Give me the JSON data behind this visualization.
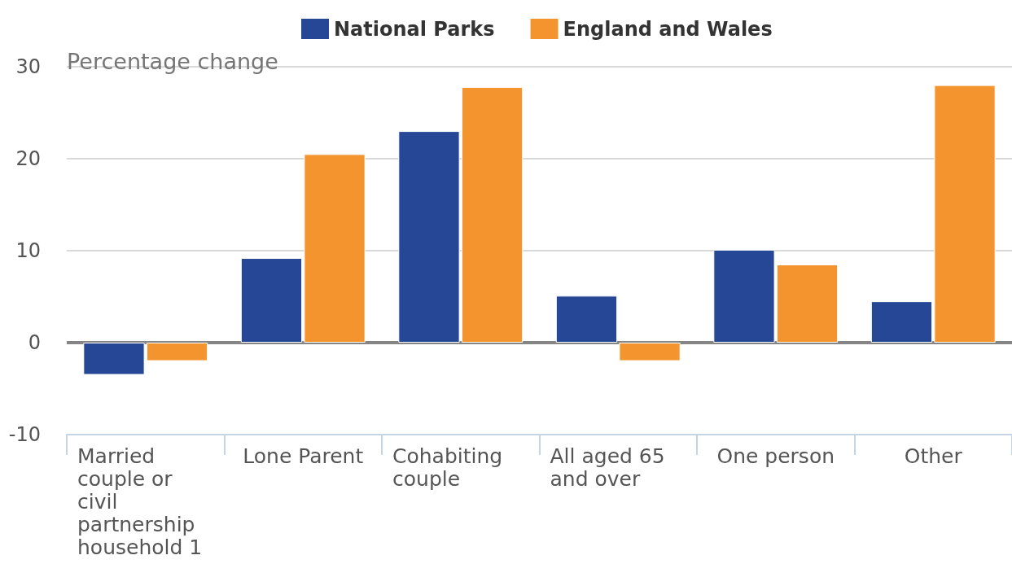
{
  "chart_data": {
    "type": "bar",
    "ylabel": "Percentage change",
    "categories": [
      "Married couple or civil partnership household 1",
      "Lone Parent",
      "Cohabiting couple",
      "All aged 65 and over",
      "One person",
      "Other"
    ],
    "series": [
      {
        "name": "National Parks",
        "color": "#264796",
        "values": [
          -3.5,
          9.2,
          23.0,
          5.1,
          10.1,
          4.5
        ]
      },
      {
        "name": "England and Wales",
        "color": "#f4942f",
        "values": [
          -2.0,
          20.5,
          27.8,
          -2.0,
          8.5,
          28.0
        ]
      }
    ],
    "ylim": [
      -10,
      30
    ],
    "yticks": [
      -10,
      0,
      10,
      20,
      30
    ],
    "grid": "y",
    "legend": "top",
    "ref_lines": [
      {
        "axis": "y",
        "value": 0,
        "color": "#858585"
      }
    ]
  }
}
